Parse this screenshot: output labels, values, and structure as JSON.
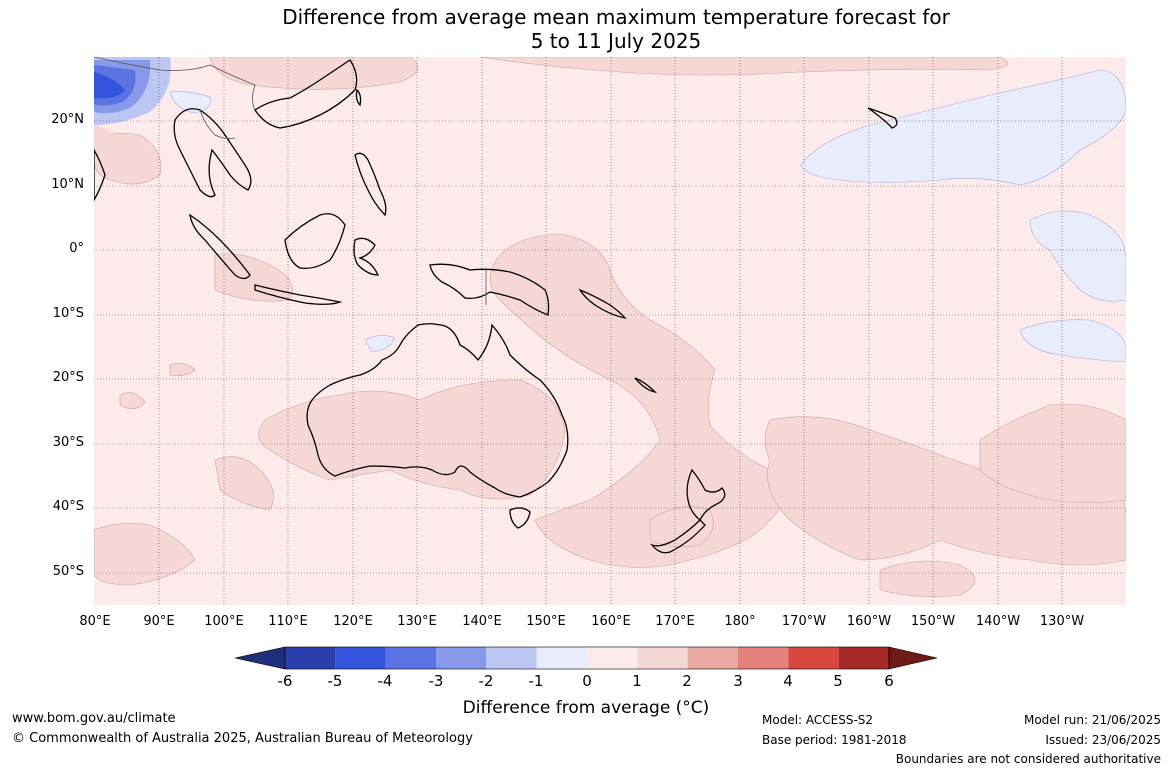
{
  "title_line1": "Difference from average mean maximum temperature forecast for",
  "title_line2": "5 to 11 July 2025",
  "lat_labels": [
    "20°N",
    "10°N",
    "0°",
    "10°S",
    "20°S",
    "30°S",
    "40°S",
    "50°S"
  ],
  "lon_labels": [
    "80°E",
    "90°E",
    "100°E",
    "110°E",
    "120°E",
    "130°E",
    "140°E",
    "150°E",
    "160°E",
    "170°E",
    "180°",
    "170°W",
    "160°W",
    "150°W",
    "140°W",
    "130°W"
  ],
  "legend": {
    "label": "Difference from average (°C)",
    "ticks": [
      "-6",
      "-5",
      "-4",
      "-3",
      "-2",
      "-1",
      "0",
      "1",
      "2",
      "3",
      "4",
      "5",
      "6"
    ],
    "colors": {
      "below_-6": "#1f2f7a",
      "-6_-5": "#2a3fae",
      "-5_-4": "#3354dc",
      "-4_-3": "#5b73e3",
      "-3_-2": "#8799e8",
      "-2_-1": "#bcc6f3",
      "-1_0": "#e8ecfb",
      "0_1": "#fcebea",
      "1_2": "#f5d8d6",
      "2_3": "#eba9a4",
      "3_4": "#e2827a",
      "4_5": "#d9473e",
      "5_6": "#a72a26",
      "above_6": "#6e1b17"
    }
  },
  "footer": {
    "website": "www.bom.gov.au/climate",
    "copyright": "© Commonwealth of Australia 2025, Australian Bureau of Meteorology",
    "model": "Model: ACCESS-S2",
    "base_period": "Base period: 1981-2018",
    "model_run": "Model run: 21/06/2025",
    "issued": "Issued: 23/06/2025",
    "disclaimer": "Boundaries are not considered authoritative"
  }
}
